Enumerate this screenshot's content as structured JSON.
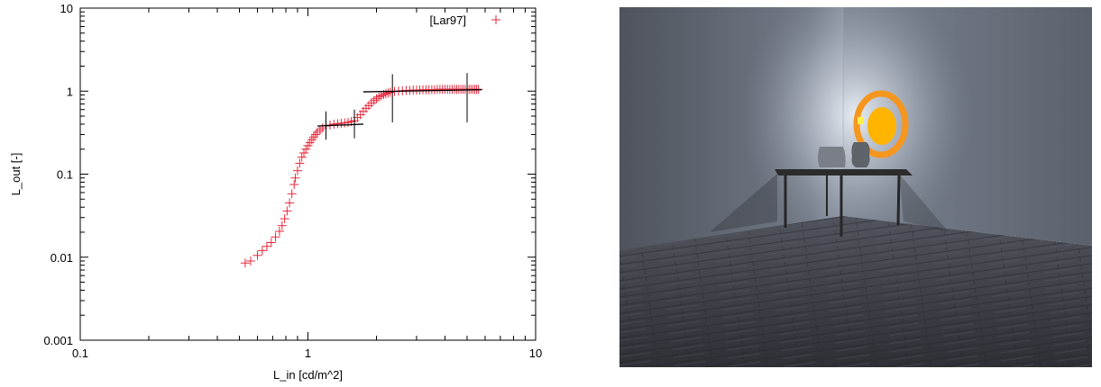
{
  "chart_data": {
    "type": "scatter",
    "xscale": "log",
    "yscale": "log",
    "xlim": [
      0.1,
      10
    ],
    "ylim": [
      0.001,
      10
    ],
    "xlabel": "L_in [cd/m^2]",
    "ylabel": "L_out [-]",
    "x_ticks": [
      "0.1",
      "1",
      "10"
    ],
    "y_ticks": [
      "0.001",
      "0.01",
      "0.1",
      "1",
      "10"
    ],
    "legend": {
      "position": "top-right",
      "label": "[Lar97]",
      "marker": "+",
      "color": "#e8283c"
    },
    "grid": false,
    "series": [
      {
        "name": "[Lar97]",
        "color": "#e8283c",
        "marker": "+",
        "x": [
          0.53,
          0.56,
          0.6,
          0.63,
          0.66,
          0.69,
          0.72,
          0.75,
          0.77,
          0.79,
          0.81,
          0.83,
          0.85,
          0.87,
          0.88,
          0.9,
          0.92,
          0.94,
          0.96,
          0.98,
          1.0,
          1.02,
          1.04,
          1.06,
          1.08,
          1.1,
          1.13,
          1.16,
          1.2,
          1.25,
          1.3,
          1.35,
          1.4,
          1.45,
          1.5,
          1.55,
          1.6,
          1.65,
          1.7,
          1.75,
          1.8,
          1.85,
          1.9,
          1.95,
          2.0,
          2.05,
          2.1,
          2.15,
          2.2,
          2.25,
          2.3,
          2.4,
          2.5,
          2.6,
          2.7,
          2.8,
          2.9,
          3.0,
          3.1,
          3.2,
          3.3,
          3.4,
          3.5,
          3.6,
          3.7,
          3.8,
          3.9,
          4.0,
          4.1,
          4.2,
          4.3,
          4.4,
          4.5,
          4.6,
          4.7,
          4.8,
          4.9,
          5.0,
          5.1,
          5.2,
          5.3,
          5.4,
          5.5,
          5.6
        ],
        "y": [
          0.0085,
          0.009,
          0.0105,
          0.012,
          0.0135,
          0.015,
          0.0175,
          0.0205,
          0.024,
          0.029,
          0.036,
          0.045,
          0.058,
          0.075,
          0.09,
          0.11,
          0.135,
          0.16,
          0.18,
          0.2,
          0.22,
          0.24,
          0.26,
          0.28,
          0.3,
          0.32,
          0.34,
          0.36,
          0.38,
          0.39,
          0.4,
          0.405,
          0.41,
          0.415,
          0.42,
          0.43,
          0.44,
          0.48,
          0.52,
          0.57,
          0.62,
          0.67,
          0.72,
          0.77,
          0.81,
          0.85,
          0.88,
          0.91,
          0.93,
          0.95,
          0.97,
          0.99,
          1.0,
          1.01,
          1.02,
          1.02,
          1.03,
          1.03,
          1.03,
          1.04,
          1.04,
          1.04,
          1.04,
          1.04,
          1.05,
          1.05,
          1.05,
          1.05,
          1.05,
          1.05,
          1.05,
          1.05,
          1.05,
          1.05,
          1.05,
          1.05,
          1.05,
          1.05,
          1.05,
          1.05,
          1.05,
          1.05,
          1.05,
          1.05
        ]
      }
    ],
    "segments": [
      {
        "name": "segment-1",
        "color": "#000000",
        "line": {
          "x": [
            1.1,
            1.75
          ],
          "y": [
            0.38,
            0.4
          ]
        },
        "ticks": [
          {
            "x": 1.2,
            "y": 0.385,
            "ylo": 0.26,
            "yhi": 0.57
          },
          {
            "x": 1.6,
            "y": 0.4,
            "ylo": 0.27,
            "yhi": 0.6
          }
        ]
      },
      {
        "name": "segment-2",
        "color": "#000000",
        "line": {
          "x": [
            1.75,
            5.8
          ],
          "y": [
            0.98,
            1.04
          ]
        },
        "ticks": [
          {
            "x": 2.35,
            "y": 1.0,
            "ylo": 0.42,
            "yhi": 1.6
          },
          {
            "x": 5.0,
            "y": 1.03,
            "ylo": 0.42,
            "yhi": 1.65
          }
        ]
      }
    ]
  },
  "render_image": {
    "description_free": true,
    "colors": {
      "wall": "#5a606b",
      "wall_light": "#8a92a0",
      "floor": "#3a3d44",
      "table": "#2c2c2c",
      "lamp_outer": "#f5961e",
      "lamp_core": "#ffb400",
      "lamp_dot": "#fff04a",
      "vase": "#6a6e75"
    }
  }
}
